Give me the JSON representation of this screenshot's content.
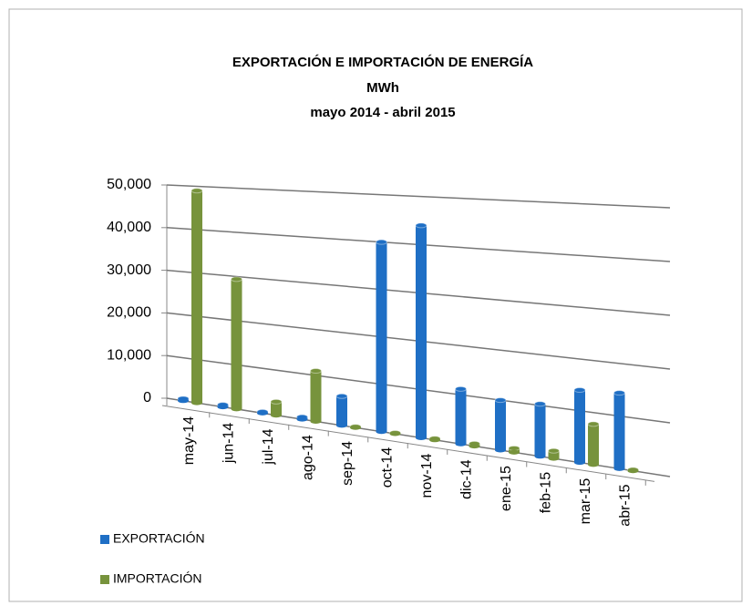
{
  "chart_data": {
    "type": "bar",
    "title": "EXPORTACIÓN E IMPORTACIÓN DE ENERGÍA",
    "subtitle": "MWh",
    "period": "mayo  2014  -  abril  2015",
    "categories": [
      "may-14",
      "jun-14",
      "jul-14",
      "ago-14",
      "sep-14",
      "oct-14",
      "nov-14",
      "dic-14",
      "ene-15",
      "feb-15",
      "mar-15",
      "abr-15"
    ],
    "series": [
      {
        "name": "EXPORTACIÓN",
        "color": "#1f6fc5",
        "values": [
          500,
          500,
          300,
          500,
          6300,
          40000,
          44000,
          11200,
          10000,
          10300,
          14000,
          14400
        ]
      },
      {
        "name": "IMPORTACIÓN",
        "color": "#77933c",
        "values": [
          49000,
          29400,
          3000,
          11000,
          200,
          200,
          300,
          500,
          800,
          1500,
          7800,
          200
        ]
      }
    ],
    "ylim": [
      0,
      50000
    ],
    "yticks": [
      0,
      {
        "value": 10000,
        "label": "10,000"
      },
      {
        "value": 20000,
        "label": "20,000"
      },
      {
        "value": 30000,
        "label": "30,000"
      },
      {
        "value": 40000,
        "label": "40,000"
      },
      {
        "value": 50000,
        "label": "50,000"
      }
    ],
    "grid": true
  }
}
